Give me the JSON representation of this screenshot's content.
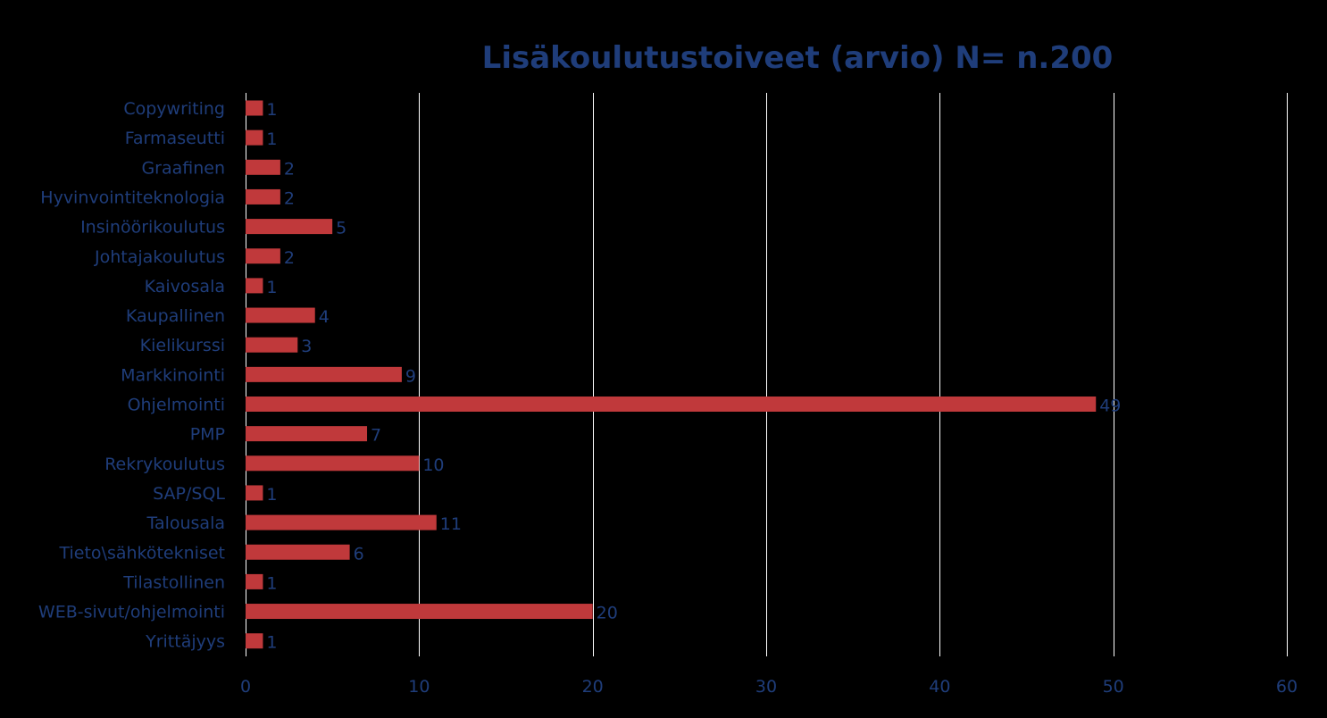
{
  "chart_data": {
    "type": "bar",
    "orientation": "horizontal",
    "title": "Lisäkoulutustoiveet (arvio) N= n.200",
    "xlabel": "",
    "ylabel": "",
    "categories": [
      "Copywriting",
      "Farmaseutti",
      "Graafinen",
      "Hyvinvointiteknologia",
      "Insinöörikoulutus",
      "Johtajakoulutus",
      "Kaivosala",
      "Kaupallinen",
      "Kielikurssi",
      "Markkinointi",
      "Ohjelmointi",
      "PMP",
      "Rekrykoulutus",
      "SAP/SQL",
      "Talousala",
      "Tieto\\sähkötekniset",
      "Tilastollinen",
      "WEB-sivut/ohjelmointi",
      "Yrittäjyys"
    ],
    "values": [
      1,
      1,
      2,
      2,
      5,
      2,
      1,
      4,
      3,
      9,
      49,
      7,
      10,
      1,
      11,
      6,
      1,
      20,
      1
    ],
    "data_labels": [
      "1",
      "1",
      "2",
      "2",
      "5",
      "2",
      "1",
      "4",
      "3",
      "9",
      "49",
      "7",
      "10",
      "1",
      "11",
      "6",
      "1",
      "20",
      "1"
    ],
    "xlim": [
      0,
      60
    ],
    "x_ticks": [
      0,
      10,
      20,
      30,
      40,
      50,
      60
    ],
    "x_tick_labels": [
      "0",
      "10",
      "20",
      "30",
      "40",
      "50",
      "60"
    ],
    "grid": "vertical",
    "legend": "none",
    "colors": {
      "background": "#000000",
      "bar": "#c0393b",
      "text": "#1f3d7a",
      "title": "#1f3d7a",
      "grid": "#ffffff"
    }
  }
}
